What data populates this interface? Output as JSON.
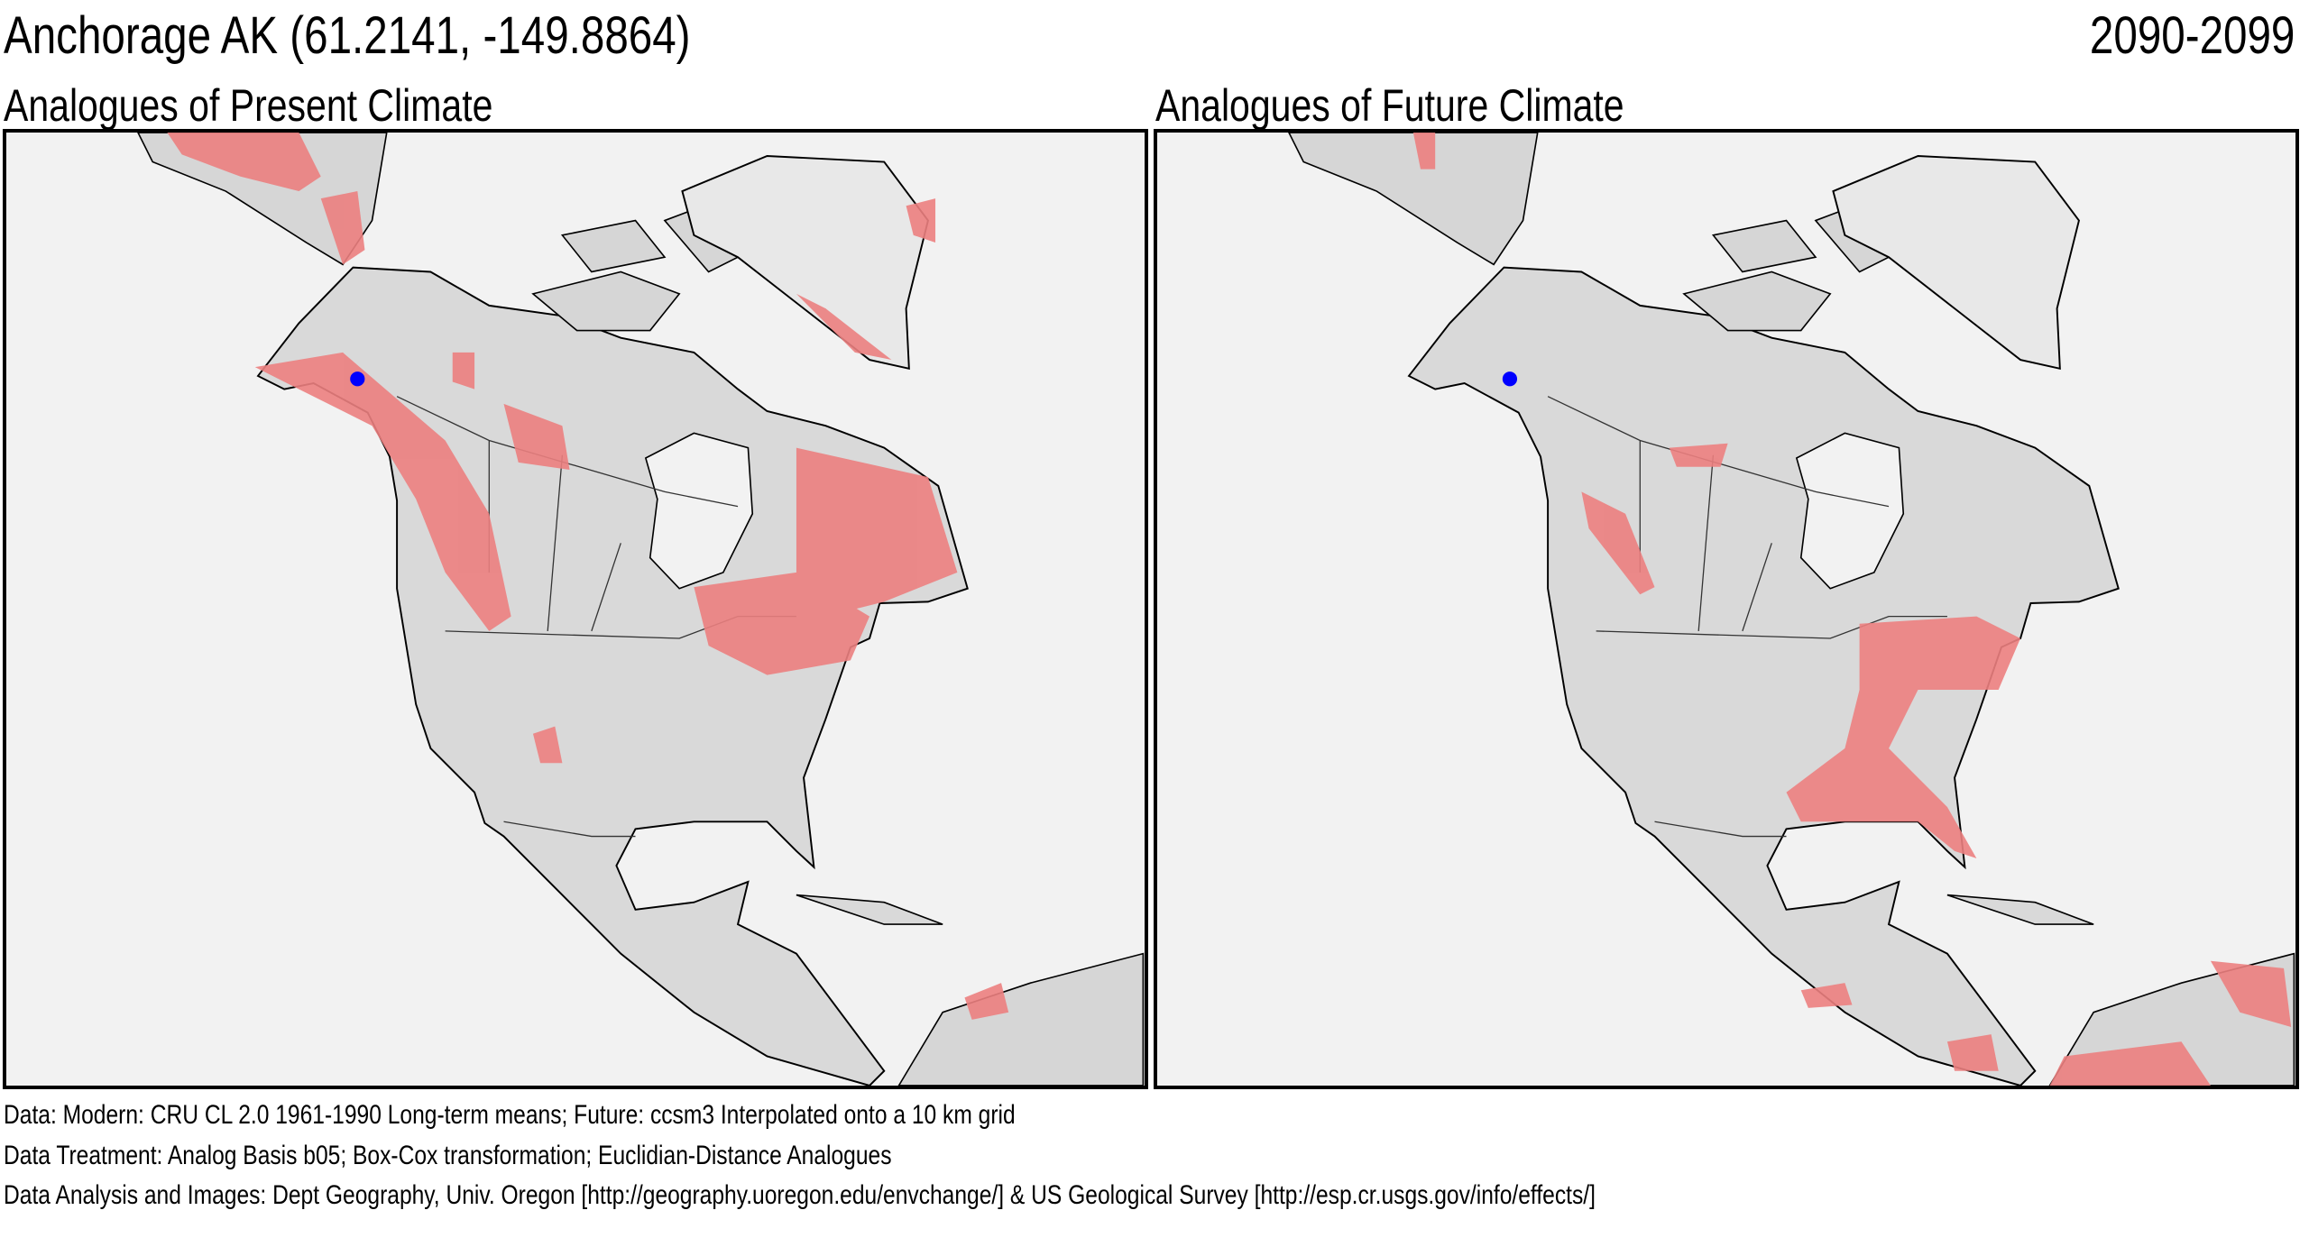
{
  "header": {
    "location": "Anchorage AK  (61.2141, -149.8864)",
    "period": "2090-2099"
  },
  "panels": [
    {
      "title": "Analogues of Present Climate"
    },
    {
      "title": "Analogues of Future Climate"
    }
  ],
  "colors": {
    "analog": "#ec8080",
    "land": "#d9d9d9",
    "water": "#f2f2f2",
    "site": "#0000ff"
  },
  "footer": {
    "data": "Data:  Modern: CRU CL 2.0 1961-1990 Long-term means; Future: ccsm3 Interpolated onto a 10 km grid",
    "treatment": "Data Treatment:  Analog Basis b05; Box-Cox transformation; Euclidian-Distance Analogues",
    "analysis": "Data Analysis and Images:  Dept Geography, Univ. Oregon [http://geography.uoregon.edu/envchange/] & US Geological Survey [http://esp.cr.usgs.gov/info/effects/]"
  }
}
